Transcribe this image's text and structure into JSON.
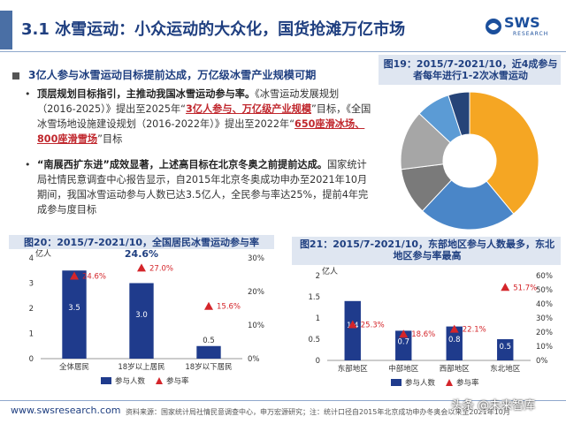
{
  "header": {
    "title": "3.1 冰雪运动：小众运动的大众化，国货抢滩万亿市场",
    "logo_text": "SWS",
    "logo_sub": "RESEARCH"
  },
  "section": {
    "heading": "3亿人参与冰雪运动目标提前达成，万亿级冰雪产业规模可期",
    "bullet1": {
      "lead": "顶层规划目标指引，主推动我国冰雪运动参与率。",
      "t1": "《冰雪运动发展规划（2016-2025）》提出至2025年“",
      "h1": "3亿人参与、万亿级产业规模",
      "t2": "”目标，《全国冰雪场地设施建设规划（2016-2022年）》提出至2022年“",
      "h2": "650座滑冰场、800座滑雪场",
      "t3": "”目标"
    },
    "bullet2": {
      "lead": "“南展西扩东进”成效显著，上述高目标在北京冬奥之前提前达成。",
      "text": "国家统计局社情民意调查中心报告显示，自2015年北京冬奥成功申办至2021年10月期间，我国冰雪运动参与人数已达3.5亿人，全民参与率达25%，提前4年完成参与度目标"
    }
  },
  "footer": {
    "url": "www.swsresearch.com",
    "source": "资料来源：国家统计局社情民意调查中心，申万宏源研究；注：统计口径自2015年北京成功申办冬奥会以来至2021年10月",
    "watermark": "头条 @未来智库"
  },
  "captions": {
    "fig19": "图19：2015/7-2021/10，近4成参与者每年进行1-2次冰雪运动",
    "fig20": "图20：2015/7-2021/10，全国居民冰雪运动参与率24.6%",
    "fig21": "图21：2015/7-2021/10，东部地区参与人数最多，东北地区参与率最高"
  },
  "chart_data": [
    {
      "id": "fig19",
      "type": "pie",
      "title": "图19：2015/7-2021/10，近4成参与者每年进行1-2次冰雪运动",
      "slices": [
        {
          "label": "",
          "value": 39,
          "color": "#f5a623"
        },
        {
          "label": "",
          "value": 23,
          "color": "#4a86c8"
        },
        {
          "label": "",
          "value": 11,
          "color": "#7a7a7a"
        },
        {
          "label": "",
          "value": 14,
          "color": "#a6a6a6"
        },
        {
          "label": "",
          "value": 8,
          "color": "#5b9bd5"
        },
        {
          "label": "",
          "value": 5,
          "color": "#264478"
        }
      ]
    },
    {
      "id": "fig20",
      "type": "bar",
      "title": "图20：2015/7-2021/10，全国居民冰雪运动参与率24.6%",
      "categories": [
        "全体居民",
        "18岁以上居民",
        "18岁以下居民"
      ],
      "series": [
        {
          "name": "参与人数",
          "values": [
            3.5,
            3.0,
            0.5
          ],
          "color": "#1f3b8c"
        },
        {
          "name": "参与率",
          "values": [
            24.6,
            27.0,
            15.6
          ],
          "color": "#d4252a"
        }
      ],
      "y_left": {
        "label": "亿人",
        "ylim": [
          0,
          4
        ],
        "ticks": [
          "0",
          "1",
          "2",
          "3",
          "4"
        ]
      },
      "y_right": {
        "ylim": [
          0,
          30
        ],
        "ticks": [
          "0%",
          "10%",
          "20%",
          "30%"
        ]
      },
      "bar_labels": [
        "3.5",
        "3.0",
        "0.5"
      ],
      "rate_labels": [
        "24.6%",
        "27.0%",
        "15.6%"
      ],
      "legend": [
        "参与人数",
        "参与率"
      ]
    },
    {
      "id": "fig21",
      "type": "bar",
      "title": "图21：2015/7-2021/10，东部地区参与人数最多，东北地区参与率最高",
      "categories": [
        "东部地区",
        "中部地区",
        "西部地区",
        "东北地区"
      ],
      "series": [
        {
          "name": "参与人数",
          "values": [
            1.4,
            0.7,
            0.8,
            0.5
          ],
          "color": "#1f3b8c"
        },
        {
          "name": "参与率",
          "values": [
            25.3,
            18.6,
            22.1,
            51.7
          ],
          "color": "#d4252a"
        }
      ],
      "y_left": {
        "label": "亿人",
        "ylim": [
          0,
          2
        ],
        "ticks": [
          "0",
          "0.5",
          "1",
          "1.5",
          "2"
        ]
      },
      "y_right": {
        "ylim": [
          0,
          60
        ],
        "ticks": [
          "0%",
          "10%",
          "20%",
          "30%",
          "40%",
          "50%",
          "60%"
        ]
      },
      "bar_labels": [
        "1.4",
        "0.7",
        "0.8",
        "0.5"
      ],
      "rate_labels": [
        "25.3%",
        "18.6%",
        "22.1%",
        "51.7%"
      ],
      "legend": [
        "参与人数",
        "参与率"
      ]
    }
  ]
}
